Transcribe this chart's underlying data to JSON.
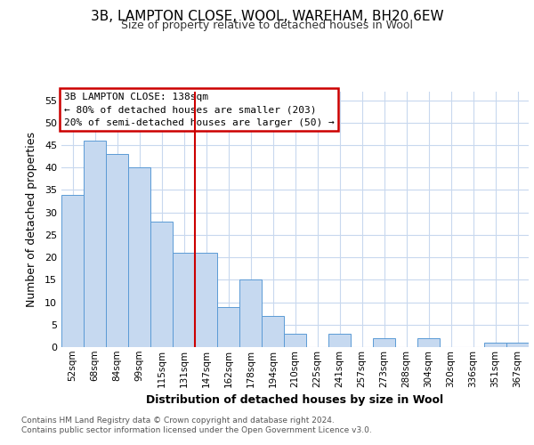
{
  "title1": "3B, LAMPTON CLOSE, WOOL, WAREHAM, BH20 6EW",
  "title2": "Size of property relative to detached houses in Wool",
  "xlabel": "Distribution of detached houses by size in Wool",
  "ylabel": "Number of detached properties",
  "bar_labels": [
    "52sqm",
    "68sqm",
    "84sqm",
    "99sqm",
    "115sqm",
    "131sqm",
    "147sqm",
    "162sqm",
    "178sqm",
    "194sqm",
    "210sqm",
    "225sqm",
    "241sqm",
    "257sqm",
    "273sqm",
    "288sqm",
    "304sqm",
    "320sqm",
    "336sqm",
    "351sqm",
    "367sqm"
  ],
  "bar_values": [
    34,
    46,
    43,
    40,
    28,
    21,
    21,
    9,
    15,
    7,
    3,
    0,
    3,
    0,
    2,
    0,
    2,
    0,
    0,
    1,
    1
  ],
  "bar_color": "#c6d9f0",
  "bar_edge_color": "#5b9bd5",
  "vline_x": 5.5,
  "vline_color": "#cc0000",
  "ylim": [
    0,
    57
  ],
  "yticks": [
    0,
    5,
    10,
    15,
    20,
    25,
    30,
    35,
    40,
    45,
    50,
    55
  ],
  "annotation_title": "3B LAMPTON CLOSE: 138sqm",
  "annotation_line1": "← 80% of detached houses are smaller (203)",
  "annotation_line2": "20% of semi-detached houses are larger (50) →",
  "footer1": "Contains HM Land Registry data © Crown copyright and database right 2024.",
  "footer2": "Contains public sector information licensed under the Open Government Licence v3.0.",
  "background_color": "#ffffff",
  "grid_color": "#c8d8ee"
}
